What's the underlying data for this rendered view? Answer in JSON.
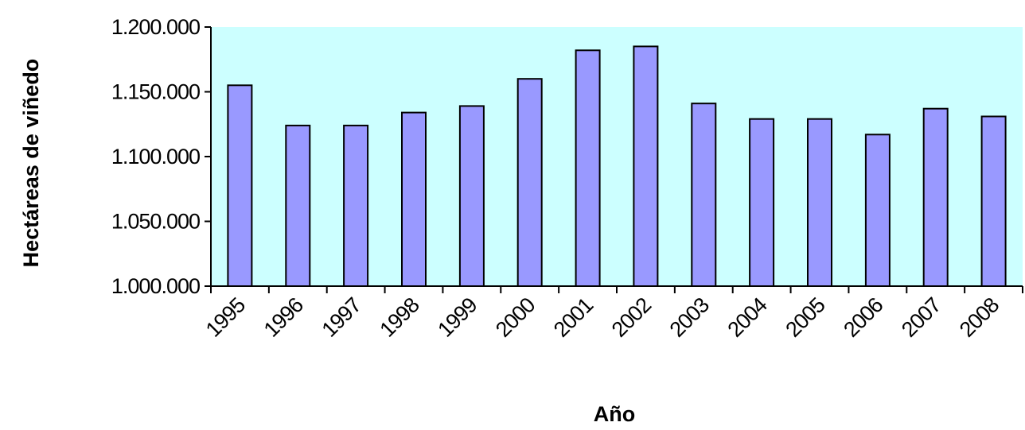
{
  "chart_data": {
    "type": "bar",
    "title": "",
    "xlabel": "Año",
    "ylabel": "Hectáreas de viñedo",
    "categories": [
      "1995",
      "1996",
      "1997",
      "1998",
      "1999",
      "2000",
      "2001",
      "2002",
      "2003",
      "2004",
      "2005",
      "2006",
      "2007",
      "2008"
    ],
    "values": [
      1155000,
      1124000,
      1124000,
      1134000,
      1139000,
      1160000,
      1182000,
      1185000,
      1141000,
      1129000,
      1129000,
      1117000,
      1137000,
      1131000
    ],
    "ylim": [
      1000000,
      1200000
    ],
    "yticks": [
      1000000,
      1050000,
      1100000,
      1150000,
      1200000
    ],
    "ytick_labels": [
      "1.000.000",
      "1.050.000",
      "1.100.000",
      "1.150.000",
      "1.200.000"
    ],
    "grid": false,
    "legend": "none",
    "colors": {
      "plot_background": "#ccffff",
      "bar_fill": "#9999ff",
      "bar_stroke": "#000000",
      "axis": "#000000"
    }
  }
}
